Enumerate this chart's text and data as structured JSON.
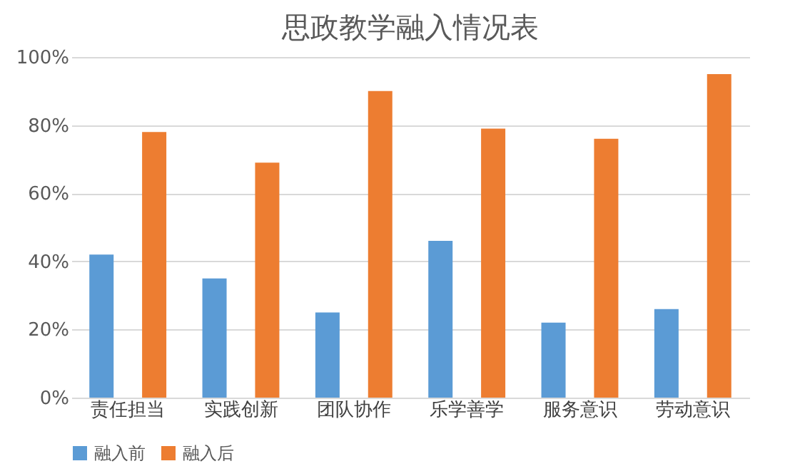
{
  "chart_data": {
    "type": "bar",
    "title": "思政教学融入情况表",
    "categories": [
      "责任担当",
      "实践创新",
      "团队协作",
      "乐学善学",
      "服务意识",
      "劳动意识"
    ],
    "series": [
      {
        "name": "融入前",
        "color": "#5b9bd5",
        "values": [
          42,
          35,
          25,
          46,
          22,
          26
        ]
      },
      {
        "name": "融入后",
        "color": "#ed7d31",
        "values": [
          78,
          69,
          90,
          79,
          76,
          95
        ]
      }
    ],
    "ylim": [
      0,
      100
    ],
    "yticks": [
      {
        "value": 0,
        "label": "0%"
      },
      {
        "value": 20,
        "label": "20%"
      },
      {
        "value": 40,
        "label": "40%"
      },
      {
        "value": 60,
        "label": "60%"
      },
      {
        "value": 80,
        "label": "80%"
      },
      {
        "value": 100,
        "label": "100%"
      }
    ],
    "grid": "y",
    "legend": "bottom"
  }
}
